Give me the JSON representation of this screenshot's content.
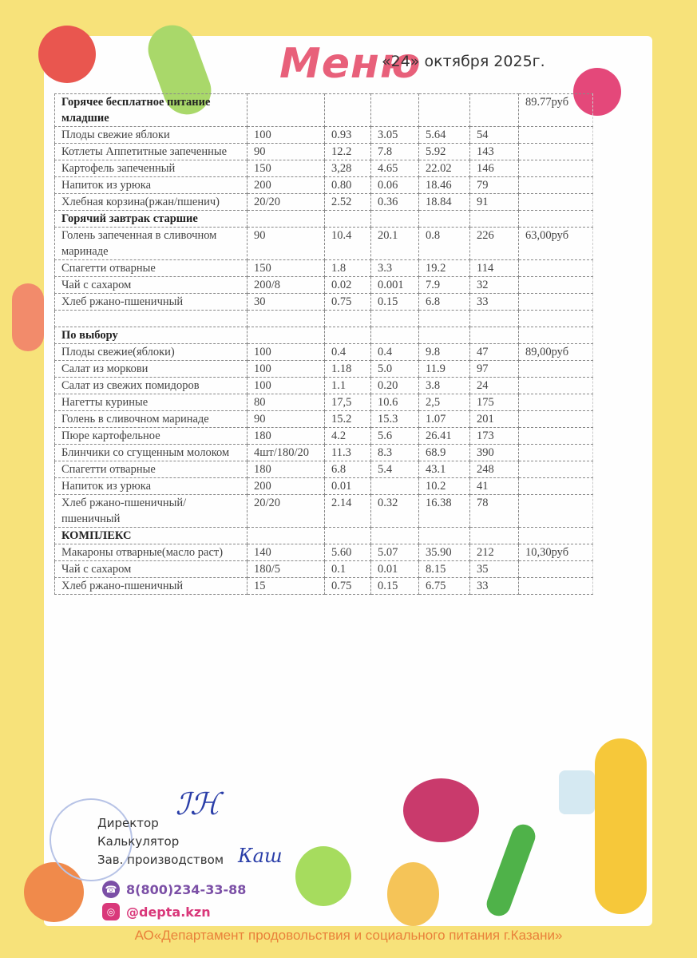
{
  "header": {
    "title": "Меню",
    "date": "«24» октября  2025г."
  },
  "sections": [
    {
      "title": "Горячее бесплатное питание младшие",
      "price": "89.77руб",
      "rows": [
        [
          "Плоды свежие яблоки",
          "100",
          "0.93",
          "3.05",
          "5.64",
          "54"
        ],
        [
          "Котлеты Аппетитные запеченные",
          "90",
          "12.2",
          "7.8",
          "5.92",
          "143"
        ],
        [
          "Картофель запеченный",
          "150",
          "3,28",
          "4.65",
          "22.02",
          "146"
        ],
        [
          "Напиток из урюка",
          "200",
          "0.80",
          "0.06",
          "18.46",
          "79"
        ],
        [
          "Хлебная корзина(ржан/пшенич)",
          "20/20",
          "2.52",
          "0.36",
          "18.84",
          "91"
        ]
      ]
    },
    {
      "title": "Горячий завтрак старшие",
      "price": "",
      "rows": [
        [
          "Голень запеченная в сливочном маринаде",
          "90",
          "10.4",
          "20.1",
          "0.8",
          "226",
          "63,00руб"
        ],
        [
          "Спагетти отварные",
          "150",
          "1.8",
          "3.3",
          "19.2",
          "114"
        ],
        [
          "Чай с сахаром",
          "200/8",
          "0.02",
          "0.001",
          "7.9",
          "32"
        ],
        [
          "Хлеб ржано-пшеничный",
          "30",
          "0.75",
          "0.15",
          "6.8",
          "33"
        ],
        [
          "",
          "",
          "",
          "",
          "",
          ""
        ]
      ]
    },
    {
      "title": "По выбору",
      "price": "",
      "rows": [
        [
          "Плоды свежие(яблоки)",
          "100",
          "0.4",
          "0.4",
          "9.8",
          "47",
          "89,00руб"
        ],
        [
          "Салат из моркови",
          "100",
          "1.18",
          "5.0",
          "11.9",
          "97"
        ],
        [
          "Салат из свежих помидоров",
          "100",
          "1.1",
          "0.20",
          "3.8",
          "24"
        ],
        [
          "Нагетты куриные",
          "80",
          "17,5",
          "10.6",
          "2,5",
          "175"
        ],
        [
          "Голень в сливочном маринаде",
          "90",
          "15.2",
          "15.3",
          "1.07",
          "201"
        ],
        [
          "Пюре картофельное",
          "180",
          "4.2",
          "5.6",
          "26.41",
          "173"
        ],
        [
          "Блинчики со сгущенным молоком",
          "4шт/180/20",
          "11.3",
          "8.3",
          "68.9",
          "390"
        ],
        [
          "Спагетти  отварные",
          "180",
          "6.8",
          "5.4",
          "43.1",
          "248"
        ],
        [
          "Напиток из урюка",
          "200",
          "0.01",
          "",
          "10.2",
          "41"
        ],
        [
          "Хлеб ржано-пшеничный/пшеничный",
          "20/20",
          "2.14",
          "0.32",
          "16.38",
          "78"
        ]
      ]
    },
    {
      "title": "КОМПЛЕКС",
      "price": "",
      "rows": [
        [
          "Макароны отварные(масло раст)",
          "140",
          "5.60",
          "5.07",
          "35.90",
          "212",
          "10,30руб"
        ],
        [
          "Чай с сахаром",
          "180/5",
          "0.1",
          "0.01",
          "8.15",
          "35"
        ],
        [
          "Хлеб ржано-пшеничный",
          "15",
          "0.75",
          "0.15",
          "6.75",
          "33"
        ]
      ]
    }
  ],
  "signatures": {
    "director": "Директор",
    "calculator": "Калькулятор",
    "production": "Зав. производством"
  },
  "contacts": {
    "phone": "8(800)234-33-88",
    "instagram": "@depta.kzn",
    "phone_icon": "phone-icon",
    "instagram_icon": "instagram-icon"
  },
  "footer": "АО«Департамент продовольствия и социального питания г.Казани»",
  "colors": {
    "background": "#f7e27a",
    "title": "#e8607a",
    "footer_text": "#e9813a",
    "phone": "#7b4fa6",
    "instagram": "#d9387a"
  }
}
